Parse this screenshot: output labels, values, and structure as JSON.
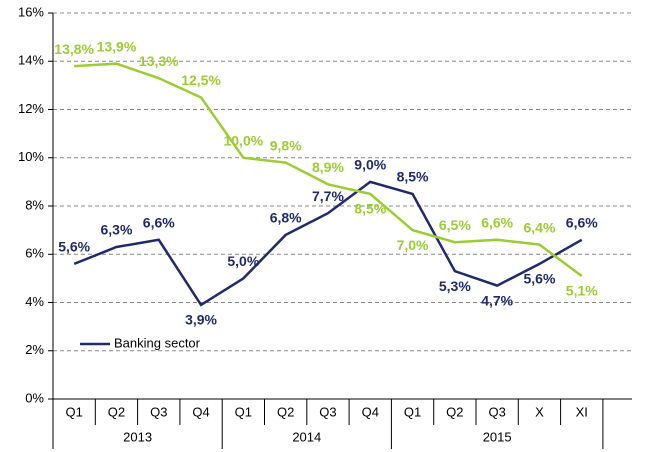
{
  "chart_data": {
    "type": "line",
    "categories": [
      "Q1",
      "Q2",
      "Q3",
      "Q4",
      "Q1",
      "Q2",
      "Q3",
      "Q4",
      "Q1",
      "Q2",
      "Q3",
      "X",
      "XI"
    ],
    "category_groups": [
      {
        "label": "2013",
        "count": 4
      },
      {
        "label": "2014",
        "count": 4
      },
      {
        "label": "2015",
        "count": 5
      }
    ],
    "series": [
      {
        "name": "Banking sector",
        "color": "#1f2a6b",
        "values": [
          5.6,
          6.3,
          6.6,
          3.9,
          5.0,
          6.8,
          7.7,
          9.0,
          8.5,
          5.3,
          4.7,
          5.6,
          6.6
        ],
        "value_labels": [
          "5,6%",
          "6,3%",
          "6,6%",
          "3,9%",
          "5,0%",
          "6,8%",
          "7,7%",
          "9,0%",
          "8,5%",
          "5,3%",
          "4,7%",
          "5,6%",
          "6,6%"
        ]
      },
      {
        "color": "#9acd32",
        "values": [
          13.8,
          13.9,
          13.3,
          12.5,
          10.0,
          9.8,
          8.9,
          8.5,
          7.0,
          6.5,
          6.6,
          6.4,
          5.1
        ],
        "value_labels": [
          "13,8%",
          "13,9%",
          "13,3%",
          "12,5%",
          "10,0%",
          "9,8%",
          "8,9%",
          "8,5%",
          "7,0%",
          "6,5%",
          "6,6%",
          "6,4%",
          "5,1%"
        ]
      }
    ],
    "ylim": [
      0,
      16
    ],
    "yticks": [
      {
        "value": 0,
        "label": "0%"
      },
      {
        "value": 2,
        "label": "2%"
      },
      {
        "value": 4,
        "label": "4%"
      },
      {
        "value": 6,
        "label": "6%"
      },
      {
        "value": 8,
        "label": "8%"
      },
      {
        "value": 10,
        "label": "10%"
      },
      {
        "value": 12,
        "label": "12%"
      },
      {
        "value": 14,
        "label": "14%"
      },
      {
        "value": 16,
        "label": "16%"
      }
    ],
    "grid": true,
    "legend": "lower left"
  }
}
